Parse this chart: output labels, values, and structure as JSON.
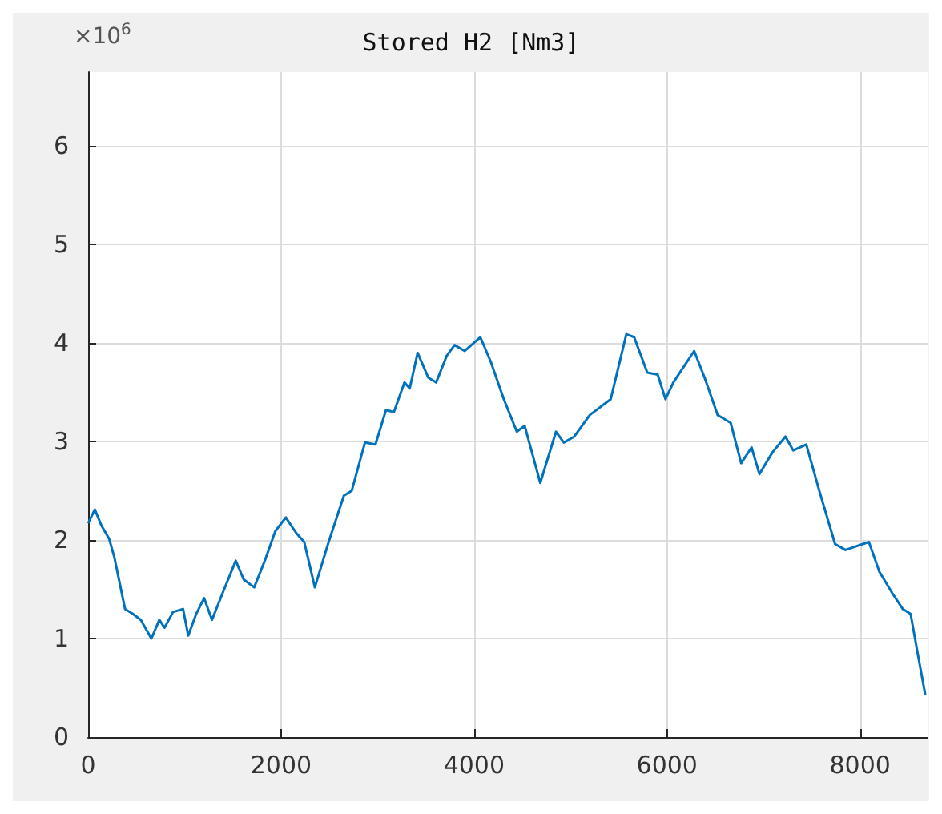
{
  "chart_data": {
    "type": "line",
    "title": "Stored H2 [Nm3]",
    "annotations": [
      "×10$^{6}$"
    ],
    "xlim": [
      0,
      8700
    ],
    "xticks": [
      0,
      2000,
      4000,
      6000,
      8000
    ],
    "ylim": [
      0,
      6.75
    ],
    "yticks": [
      0,
      1,
      2,
      3,
      4,
      5,
      6
    ],
    "grid": true,
    "marker": "none",
    "series": [
      {
        "color": "#0072bd",
        "x": [
          0,
          70,
          137,
          219,
          273,
          383,
          464,
          546,
          656,
          738,
          792,
          880,
          984,
          1038,
          1120,
          1202,
          1284,
          1393,
          1530,
          1612,
          1721,
          1831,
          1940,
          2049,
          2158,
          2240,
          2350,
          2486,
          2650,
          2732,
          2869,
          2978,
          3087,
          3169,
          3279,
          3333,
          3415,
          3525,
          3607,
          3716,
          3798,
          3903,
          4065,
          4173,
          4308,
          4443,
          4524,
          4686,
          4849,
          4930,
          5038,
          5200,
          5416,
          5578,
          5659,
          5795,
          5903,
          5984,
          6065,
          6281,
          6389,
          6524,
          6659,
          6768,
          6876,
          6957,
          7092,
          7227,
          7308,
          7443,
          7578,
          7741,
          7849,
          8092,
          8200,
          8335,
          8443,
          8524,
          8605,
          8676
        ],
        "values": [
          2.17,
          2.31,
          2.15,
          2.01,
          1.82,
          1.3,
          1.25,
          1.19,
          1.0,
          1.19,
          1.11,
          1.27,
          1.3,
          1.03,
          1.25,
          1.41,
          1.19,
          1.46,
          1.79,
          1.6,
          1.52,
          1.79,
          2.09,
          2.23,
          2.07,
          1.98,
          1.52,
          1.96,
          2.45,
          2.5,
          2.99,
          2.97,
          3.32,
          3.3,
          3.6,
          3.54,
          3.9,
          3.65,
          3.6,
          3.87,
          3.98,
          3.92,
          4.06,
          3.81,
          3.43,
          3.1,
          3.16,
          2.58,
          3.1,
          2.99,
          3.05,
          3.27,
          3.43,
          4.09,
          4.06,
          3.7,
          3.68,
          3.43,
          3.6,
          3.92,
          3.65,
          3.27,
          3.19,
          2.78,
          2.94,
          2.67,
          2.89,
          3.05,
          2.91,
          2.97,
          2.5,
          1.96,
          1.9,
          1.98,
          1.68,
          1.46,
          1.3,
          1.25,
          0.81,
          0.43
        ]
      }
    ]
  }
}
